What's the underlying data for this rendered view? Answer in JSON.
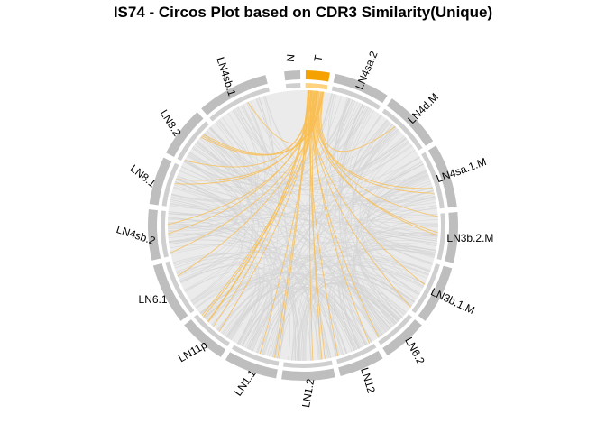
{
  "chart_data": {
    "type": "circos",
    "title": "IS74 - Circos Plot based on CDR3 Similarity(Unique)",
    "sectors": [
      "N",
      "T",
      "LN4sa.2",
      "LN4d.M",
      "LN4sa.1.M",
      "LN3b.2.M",
      "LN3b.1.M",
      "LN6.2",
      "LN12",
      "LN1.2",
      "LN1.1",
      "LN11p",
      "LN6.1",
      "LN4sb.2",
      "LN8.1",
      "LN8.2",
      "LN4sb.1"
    ],
    "highlight_sector": "T",
    "colors": {
      "highlight": "#F5A100",
      "highlight_light": "#FFD27F",
      "sector": "#BEBEBE",
      "inner_track": "#EBEBEB",
      "link": "#D4D4D4",
      "highlight_link": "#F8BE55"
    }
  }
}
